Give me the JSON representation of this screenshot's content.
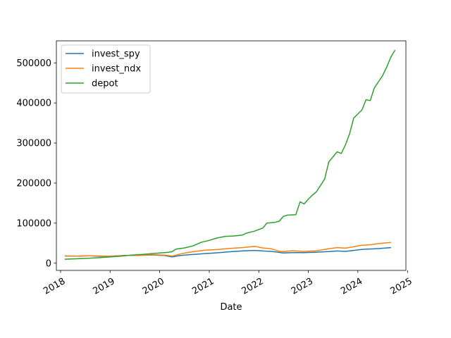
{
  "chart_data": {
    "type": "line",
    "xlabel": "Date",
    "ylabel": "",
    "x_type": "date",
    "xlim": [
      "2017-12-01",
      "2024-12-20"
    ],
    "ylim": [
      -18000,
      555000
    ],
    "x_ticks": [
      "2018",
      "2019",
      "2020",
      "2021",
      "2022",
      "2023",
      "2024",
      "2025"
    ],
    "y_ticks": [
      {
        "value": 0,
        "label": "0"
      },
      {
        "value": 100000,
        "label": "100000"
      },
      {
        "value": 200000,
        "label": "200000"
      },
      {
        "value": 300000,
        "label": "300000"
      },
      {
        "value": 400000,
        "label": "400000"
      },
      {
        "value": 500000,
        "label": "500000"
      }
    ],
    "grid": false,
    "legend_position": "upper left",
    "series": [
      {
        "name": "invest_spy",
        "color": "#1f77b4",
        "points": [
          [
            "2018-02-01",
            18000
          ],
          [
            "2018-05-01",
            17500
          ],
          [
            "2018-08-01",
            18500
          ],
          [
            "2018-11-01",
            17000
          ],
          [
            "2019-02-01",
            18000
          ],
          [
            "2019-05-01",
            19500
          ],
          [
            "2019-08-01",
            19800
          ],
          [
            "2019-11-01",
            20500
          ],
          [
            "2020-02-01",
            19500
          ],
          [
            "2020-04-01",
            15500
          ],
          [
            "2020-06-01",
            19000
          ],
          [
            "2020-08-01",
            21000
          ],
          [
            "2020-10-01",
            22500
          ],
          [
            "2020-12-01",
            24000
          ],
          [
            "2021-03-01",
            26000
          ],
          [
            "2021-06-01",
            28500
          ],
          [
            "2021-09-01",
            30500
          ],
          [
            "2021-12-01",
            32000
          ],
          [
            "2022-02-01",
            30500
          ],
          [
            "2022-04-01",
            29500
          ],
          [
            "2022-06-01",
            27000
          ],
          [
            "2022-07-01",
            25500
          ],
          [
            "2022-09-01",
            26500
          ],
          [
            "2022-12-01",
            26500
          ],
          [
            "2023-03-01",
            27500
          ],
          [
            "2023-06-01",
            29000
          ],
          [
            "2023-08-01",
            30500
          ],
          [
            "2023-10-01",
            29500
          ],
          [
            "2023-12-01",
            32000
          ],
          [
            "2024-02-01",
            34500
          ],
          [
            "2024-04-01",
            35500
          ],
          [
            "2024-06-01",
            36500
          ],
          [
            "2024-09-01",
            39000
          ]
        ]
      },
      {
        "name": "invest_ndx",
        "color": "#ff7f0e",
        "points": [
          [
            "2018-02-01",
            18000
          ],
          [
            "2018-05-01",
            17500
          ],
          [
            "2018-08-01",
            18500
          ],
          [
            "2018-11-01",
            17500
          ],
          [
            "2019-02-01",
            17500
          ],
          [
            "2019-05-01",
            19500
          ],
          [
            "2019-08-01",
            19500
          ],
          [
            "2019-11-01",
            21000
          ],
          [
            "2020-02-01",
            20500
          ],
          [
            "2020-04-01",
            17500
          ],
          [
            "2020-06-01",
            23000
          ],
          [
            "2020-08-01",
            27000
          ],
          [
            "2020-10-01",
            30000
          ],
          [
            "2020-12-01",
            32500
          ],
          [
            "2021-03-01",
            34000
          ],
          [
            "2021-06-01",
            37000
          ],
          [
            "2021-09-01",
            39000
          ],
          [
            "2021-12-01",
            42000
          ],
          [
            "2022-02-01",
            38000
          ],
          [
            "2022-04-01",
            36000
          ],
          [
            "2022-06-01",
            30000
          ],
          [
            "2022-07-01",
            29000
          ],
          [
            "2022-09-01",
            31000
          ],
          [
            "2022-12-01",
            29500
          ],
          [
            "2023-03-01",
            31000
          ],
          [
            "2023-06-01",
            36000
          ],
          [
            "2023-08-01",
            39000
          ],
          [
            "2023-10-01",
            37500
          ],
          [
            "2023-12-01",
            41000
          ],
          [
            "2024-02-01",
            45000
          ],
          [
            "2024-04-01",
            46000
          ],
          [
            "2024-06-01",
            49000
          ],
          [
            "2024-09-01",
            52000
          ]
        ]
      },
      {
        "name": "depot",
        "color": "#2ca02c",
        "points": [
          [
            "2018-02-01",
            10000
          ],
          [
            "2018-06-01",
            11500
          ],
          [
            "2018-09-01",
            13000
          ],
          [
            "2018-12-01",
            15000
          ],
          [
            "2019-03-01",
            17000
          ],
          [
            "2019-06-01",
            20000
          ],
          [
            "2019-09-01",
            22000
          ],
          [
            "2019-12-01",
            24500
          ],
          [
            "2020-03-01",
            27000
          ],
          [
            "2020-04-01",
            28500
          ],
          [
            "2020-05-01",
            35000
          ],
          [
            "2020-07-01",
            38000
          ],
          [
            "2020-09-01",
            43000
          ],
          [
            "2020-11-01",
            52000
          ],
          [
            "2021-01-01",
            57000
          ],
          [
            "2021-03-01",
            63000
          ],
          [
            "2021-05-01",
            67000
          ],
          [
            "2021-07-01",
            68000
          ],
          [
            "2021-09-01",
            70000
          ],
          [
            "2021-10-01",
            75000
          ],
          [
            "2021-12-01",
            80000
          ],
          [
            "2022-02-01",
            88000
          ],
          [
            "2022-03-01",
            100000
          ],
          [
            "2022-05-01",
            102000
          ],
          [
            "2022-06-01",
            105000
          ],
          [
            "2022-07-01",
            117000
          ],
          [
            "2022-08-01",
            120000
          ],
          [
            "2022-10-01",
            121000
          ],
          [
            "2022-11-01",
            153000
          ],
          [
            "2022-12-01",
            148000
          ],
          [
            "2023-01-01",
            160000
          ],
          [
            "2023-02-01",
            170000
          ],
          [
            "2023-03-01",
            178000
          ],
          [
            "2023-05-01",
            210000
          ],
          [
            "2023-06-01",
            253000
          ],
          [
            "2023-07-01",
            265000
          ],
          [
            "2023-08-01",
            278000
          ],
          [
            "2023-09-01",
            274000
          ],
          [
            "2023-10-01",
            295000
          ],
          [
            "2023-11-01",
            323000
          ],
          [
            "2023-12-01",
            362000
          ],
          [
            "2024-02-01",
            383000
          ],
          [
            "2024-03-01",
            408000
          ],
          [
            "2024-04-01",
            406000
          ],
          [
            "2024-05-01",
            437000
          ],
          [
            "2024-07-01",
            468000
          ],
          [
            "2024-08-01",
            490000
          ],
          [
            "2024-09-01",
            515000
          ],
          [
            "2024-10-01",
            532000
          ]
        ]
      }
    ]
  }
}
